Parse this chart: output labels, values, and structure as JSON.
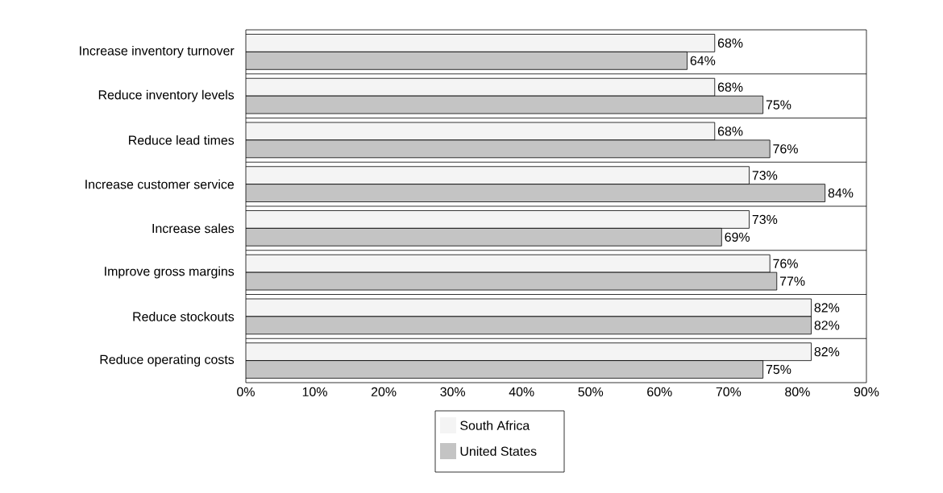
{
  "chart_data": {
    "type": "bar",
    "orientation": "horizontal",
    "categories": [
      "Increase inventory turnover",
      "Reduce inventory levels",
      "Reduce lead times",
      "Increase customer service",
      "Increase sales",
      "Improve gross margins",
      "Reduce stockouts",
      "Reduce operating costs"
    ],
    "series": [
      {
        "name": "South Africa",
        "color": "#f4f4f4",
        "values": [
          68,
          68,
          68,
          73,
          73,
          76,
          82,
          82
        ],
        "value_labels": [
          "68%",
          "68%",
          "68%",
          "73%",
          "73%",
          "76%",
          "82%",
          "82%"
        ]
      },
      {
        "name": "United States",
        "color": "#c4c4c4",
        "values": [
          64,
          75,
          76,
          84,
          69,
          77,
          82,
          75
        ],
        "value_labels": [
          "64%",
          "75%",
          "76%",
          "84%",
          "69%",
          "77%",
          "82%",
          "75%"
        ]
      }
    ],
    "xlim": [
      0,
      90
    ],
    "xticks": [
      {
        "value": 0,
        "label": "0%"
      },
      {
        "value": 10,
        "label": "10%"
      },
      {
        "value": 20,
        "label": "20%"
      },
      {
        "value": 30,
        "label": "30%"
      },
      {
        "value": 40,
        "label": "40%"
      },
      {
        "value": 50,
        "label": "50%"
      },
      {
        "value": 60,
        "label": "60%"
      },
      {
        "value": 70,
        "label": "70%"
      },
      {
        "value": 80,
        "label": "80%"
      },
      {
        "value": 90,
        "label": "90%"
      }
    ],
    "grid": "y",
    "legend": "bottom"
  }
}
